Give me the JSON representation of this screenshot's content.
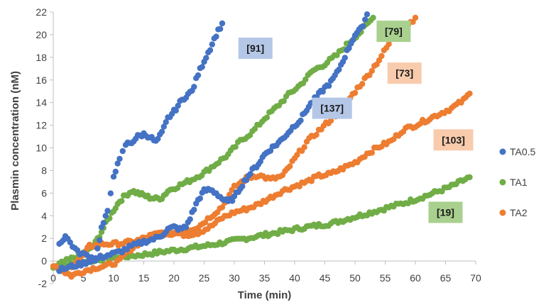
{
  "chart_data": {
    "type": "scatter",
    "xlabel": "Time (min)",
    "ylabel": "Plasmin concentration (nM)",
    "xlim": [
      0,
      70
    ],
    "ylim": [
      -2,
      22
    ],
    "xticks": [
      0,
      5,
      10,
      15,
      20,
      25,
      30,
      35,
      40,
      45,
      50,
      55,
      60,
      65,
      70
    ],
    "yticks": [
      -2,
      0,
      2,
      4,
      6,
      8,
      10,
      12,
      14,
      16,
      18,
      20,
      22
    ],
    "grid": false,
    "legend": "right",
    "series": [
      {
        "name": "TA0.5",
        "color": "#4472C4",
        "anchors": [
          [
            1,
            -0.8
          ],
          [
            3,
            -0.5
          ],
          [
            5,
            -0.2
          ],
          [
            7,
            0.2
          ],
          [
            9,
            0.5
          ],
          [
            11,
            0.8
          ],
          [
            13,
            1.3
          ],
          [
            15,
            1.7
          ],
          [
            17,
            2.0
          ],
          [
            18,
            2.3
          ],
          [
            19,
            2.8
          ],
          [
            20,
            3.0
          ],
          [
            21,
            2.8
          ],
          [
            22,
            3.0
          ],
          [
            23,
            4.2
          ],
          [
            24,
            5.4
          ],
          [
            25,
            6.2
          ],
          [
            26,
            6.3
          ],
          [
            27,
            6.0
          ],
          [
            28,
            5.5
          ],
          [
            29,
            5.2
          ],
          [
            30,
            5.6
          ],
          [
            31,
            6.5
          ],
          [
            32,
            7.3
          ],
          [
            33,
            8.0
          ],
          [
            34,
            8.6
          ],
          [
            35,
            9.4
          ],
          [
            36,
            9.9
          ],
          [
            37,
            10.3
          ],
          [
            38,
            10.8
          ],
          [
            39,
            11.4
          ],
          [
            40,
            12.0
          ],
          [
            41,
            12.5
          ],
          [
            42,
            13.4
          ],
          [
            43,
            14.1
          ],
          [
            44,
            14.7
          ],
          [
            45,
            15.3
          ],
          [
            46,
            15.8
          ],
          [
            47,
            16.6
          ],
          [
            48,
            17.7
          ],
          [
            49,
            18.9
          ],
          [
            50,
            20.0
          ],
          [
            51,
            20.5
          ],
          [
            52,
            21.8
          ]
        ]
      },
      {
        "name": "TA1",
        "color": "#70AD47",
        "anchors": [
          [
            0,
            -0.6
          ],
          [
            4,
            -0.2
          ],
          [
            7,
            0.1
          ],
          [
            10,
            0.3
          ],
          [
            14,
            0.5
          ],
          [
            18,
            0.8
          ],
          [
            22,
            1.1
          ],
          [
            26,
            1.4
          ],
          [
            30,
            1.8
          ],
          [
            34,
            2.2
          ],
          [
            38,
            2.6
          ],
          [
            42,
            3.0
          ],
          [
            46,
            3.3
          ],
          [
            50,
            3.9
          ],
          [
            54,
            4.5
          ],
          [
            58,
            5.1
          ],
          [
            62,
            5.8
          ],
          [
            66,
            6.6
          ],
          [
            69,
            7.4
          ]
        ]
      },
      {
        "name": "TA2",
        "color": "#ED7D31",
        "anchors": [
          [
            0,
            -0.3
          ],
          [
            2,
            -1.0
          ],
          [
            3,
            -1.3
          ],
          [
            5,
            -0.9
          ],
          [
            7,
            -0.6
          ],
          [
            9,
            -0.4
          ],
          [
            11,
            0.0
          ],
          [
            12,
            0.7
          ],
          [
            14,
            1.5
          ],
          [
            16,
            2.0
          ],
          [
            18,
            2.4
          ],
          [
            20,
            2.5
          ],
          [
            22,
            2.3
          ],
          [
            24,
            2.5
          ],
          [
            26,
            3.0
          ],
          [
            28,
            3.8
          ],
          [
            30,
            4.3
          ],
          [
            32,
            4.6
          ],
          [
            34,
            5.0
          ],
          [
            36,
            5.6
          ],
          [
            38,
            6.2
          ],
          [
            40,
            6.6
          ],
          [
            42,
            7.0
          ],
          [
            44,
            7.5
          ],
          [
            46,
            7.7
          ],
          [
            48,
            8.2
          ],
          [
            50,
            8.7
          ],
          [
            52,
            9.5
          ],
          [
            54,
            10.1
          ],
          [
            56,
            10.6
          ],
          [
            58,
            11.6
          ],
          [
            60,
            12.0
          ],
          [
            62,
            12.5
          ],
          [
            64,
            13.0
          ],
          [
            66,
            13.5
          ],
          [
            68,
            14.2
          ],
          [
            69,
            14.8
          ]
        ]
      }
    ],
    "extra_branches": [
      {
        "series": "TA0.5",
        "anchors": [
          [
            1,
            1.5
          ],
          [
            2,
            2.2
          ],
          [
            4,
            0.8
          ],
          [
            6,
            0.4
          ],
          [
            7,
            0.1
          ],
          [
            8,
            2.9
          ],
          [
            9,
            4.3
          ],
          [
            9.5,
            6.0
          ],
          [
            10,
            7.6
          ],
          [
            11,
            8.9
          ],
          [
            11.5,
            9.6
          ],
          [
            12,
            10.3
          ],
          [
            13,
            10.5
          ],
          [
            14,
            11.0
          ],
          [
            15,
            11.2
          ],
          [
            16,
            11.0
          ],
          [
            17,
            10.5
          ],
          [
            18,
            11.3
          ],
          [
            19,
            12.6
          ],
          [
            20,
            13.2
          ],
          [
            21,
            14.0
          ],
          [
            22,
            14.6
          ],
          [
            23,
            15.0
          ],
          [
            24,
            16.5
          ],
          [
            25,
            17.7
          ],
          [
            26,
            18.8
          ],
          [
            27,
            20.0
          ],
          [
            28,
            21.0
          ]
        ]
      },
      {
        "series": "TA1",
        "anchors": [
          [
            1,
            -0.3
          ],
          [
            3,
            0.2
          ],
          [
            5,
            0.7
          ],
          [
            6,
            1.0
          ],
          [
            7,
            1.6
          ],
          [
            8,
            2.6
          ],
          [
            9,
            3.6
          ],
          [
            10,
            4.5
          ],
          [
            11,
            5.3
          ],
          [
            12,
            5.8
          ],
          [
            13,
            6.2
          ],
          [
            14,
            6.0
          ],
          [
            15,
            5.8
          ],
          [
            16,
            5.6
          ],
          [
            17,
            5.5
          ],
          [
            18,
            5.6
          ],
          [
            19,
            6.2
          ],
          [
            21,
            6.7
          ],
          [
            23,
            7.2
          ],
          [
            25,
            7.8
          ],
          [
            27,
            8.6
          ],
          [
            29,
            9.4
          ],
          [
            31,
            10.6
          ],
          [
            33,
            11.4
          ],
          [
            35,
            12.6
          ],
          [
            37,
            13.6
          ],
          [
            39,
            14.7
          ],
          [
            41,
            15.6
          ],
          [
            43,
            16.8
          ],
          [
            45,
            17.4
          ],
          [
            47,
            18.2
          ],
          [
            49,
            19.3
          ],
          [
            51,
            20.3
          ],
          [
            53,
            21.5
          ]
        ]
      },
      {
        "series": "TA2",
        "anchors": [
          [
            3,
            -0.4
          ],
          [
            5,
            0.5
          ],
          [
            6,
            1.3
          ],
          [
            8,
            1.5
          ],
          [
            10,
            1.5
          ],
          [
            12,
            1.6
          ],
          [
            14,
            1.8
          ],
          [
            16,
            2.2
          ],
          [
            18,
            2.5
          ],
          [
            20,
            2.4
          ],
          [
            24,
            3.0
          ],
          [
            28,
            4.8
          ],
          [
            30,
            6.5
          ],
          [
            32,
            7.3
          ],
          [
            34,
            7.6
          ],
          [
            36,
            7.2
          ],
          [
            38,
            7.5
          ],
          [
            40,
            9.0
          ],
          [
            42,
            10.5
          ],
          [
            44,
            11.5
          ],
          [
            46,
            12.5
          ],
          [
            48,
            13.5
          ],
          [
            50,
            15.0
          ],
          [
            52,
            16.3
          ],
          [
            54,
            17.8
          ],
          [
            56,
            19.5
          ],
          [
            58,
            20.5
          ],
          [
            60,
            21.5
          ]
        ]
      }
    ],
    "annotations": [
      {
        "text": "[91]",
        "x": 33.5,
        "y": 18.8,
        "fill": "#B4C7E7"
      },
      {
        "text": "[137]",
        "x": 46.2,
        "y": 13.5,
        "fill": "#B4C7E7"
      },
      {
        "text": "[79]",
        "x": 56.4,
        "y": 20.3,
        "fill": "#A9D08E"
      },
      {
        "text": "[73]",
        "x": 58.2,
        "y": 16.6,
        "fill": "#F8CBAD"
      },
      {
        "text": "[103]",
        "x": 66.3,
        "y": 10.7,
        "fill": "#F8CBAD"
      },
      {
        "text": "[19]",
        "x": 65.0,
        "y": 4.3,
        "fill": "#A9D08E"
      }
    ]
  }
}
